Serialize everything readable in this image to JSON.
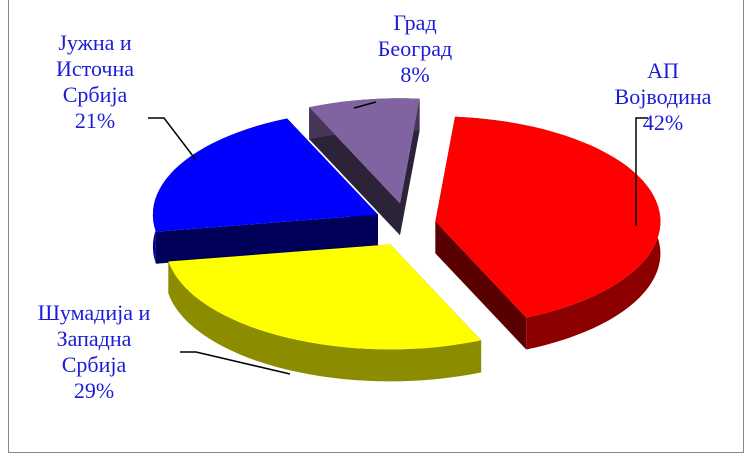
{
  "chart_data": {
    "type": "pie",
    "three_d": true,
    "exploded": true,
    "categories": [
      "АП Војводина",
      "Шумадија и Западна Србија",
      "Јужна и Источна Србија",
      "Град Београд"
    ],
    "values": [
      42,
      29,
      21,
      8
    ],
    "value_labels": [
      "42%",
      "29%",
      "21%",
      "8%"
    ],
    "colors": [
      "#ff0000",
      "#ffff00",
      "#0000ff",
      "#8064a2"
    ]
  }
}
